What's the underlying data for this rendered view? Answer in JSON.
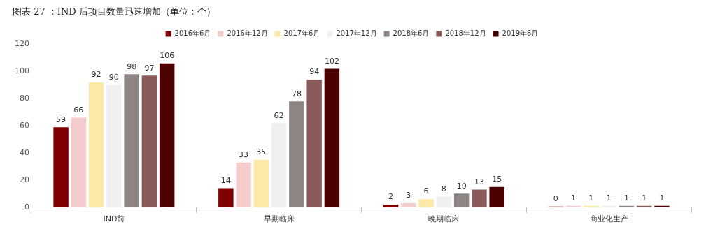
{
  "chart_data": {
    "type": "bar",
    "title": "图表 27 ：IND 后项目数量迅速增加（单位：个）",
    "categories": [
      "IND前",
      "早期临床",
      "晚期临床",
      "商业化生产"
    ],
    "series": [
      {
        "name": "2016年6月",
        "color": "#7f0000",
        "values": [
          59,
          14,
          2,
          0
        ]
      },
      {
        "name": "2016年12月",
        "color": "#f4cccc",
        "values": [
          66,
          33,
          3,
          1
        ]
      },
      {
        "name": "2017年6月",
        "color": "#fce9a8",
        "values": [
          92,
          35,
          6,
          1
        ]
      },
      {
        "name": "2017年12月",
        "color": "#f0f0f0",
        "values": [
          90,
          62,
          8,
          1
        ]
      },
      {
        "name": "2018年6月",
        "color": "#8e8585",
        "values": [
          98,
          78,
          10,
          1
        ]
      },
      {
        "name": "2018年12月",
        "color": "#8b5b5b",
        "values": [
          97,
          94,
          13,
          1
        ]
      },
      {
        "name": "2019年6月",
        "color": "#4c0000",
        "values": [
          106,
          102,
          15,
          1
        ]
      }
    ],
    "ylim": [
      0,
      120
    ],
    "yticks": [
      0,
      20,
      40,
      60,
      80,
      100,
      120
    ],
    "grid": false,
    "legend": "top",
    "data_labels": true
  }
}
